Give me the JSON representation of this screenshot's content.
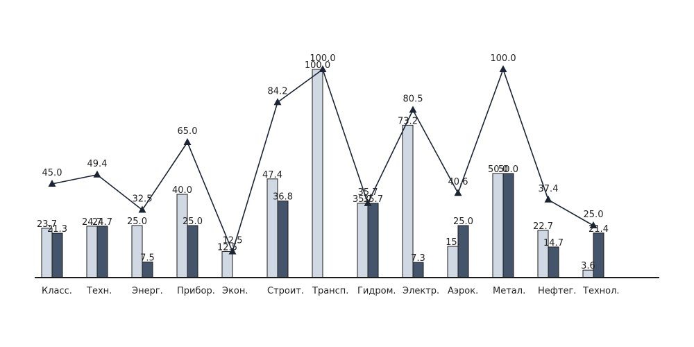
{
  "chart_data": {
    "type": "bar",
    "categories": [
      "Класс.",
      "Техн.",
      "Энерг.",
      "Прибор.",
      "Экон.",
      "Строит.",
      "Трансп.",
      "Гидром.",
      "Электр.",
      "Аэрок.",
      "Метал.",
      "Нефтег.",
      "Технол."
    ],
    "series": [
      {
        "type": "bar",
        "color": "#cfd8e3",
        "values": [
          23.7,
          24.7,
          25.0,
          40.0,
          12.5,
          47.4,
          100.0,
          35.7,
          73.2,
          15.0,
          50.0,
          22.7,
          3.6
        ],
        "labels": [
          "23.7",
          "24.7",
          "25.0",
          "40.0",
          "12.5",
          "47.4",
          "100.0",
          "35.7",
          "73.2",
          "15.",
          "50.0",
          "22.7",
          "3.6"
        ]
      },
      {
        "type": "bar",
        "color": "#44546a",
        "values": [
          21.3,
          24.7,
          7.5,
          25.0,
          null,
          36.8,
          null,
          35.7,
          7.3,
          25.0,
          50.0,
          14.7,
          21.4
        ],
        "labels": [
          "21.3",
          "24.7",
          "7.5",
          "25.0",
          "",
          "36.8",
          "",
          "35.7",
          "7.3",
          "25.0",
          "50.0",
          "14.7",
          "21.4"
        ]
      },
      {
        "type": "line",
        "color": "#1b2433",
        "marker": "triangle",
        "values": [
          45.0,
          49.4,
          32.5,
          65.0,
          12.5,
          84.2,
          100.0,
          35.7,
          80.5,
          40.6,
          100.0,
          37.4,
          25.0
        ],
        "labels": [
          "45.0",
          "49.4",
          "32.5",
          "65.0",
          "12.5",
          "84.2",
          "100.0",
          "35.7",
          "80.5",
          "40.6",
          "100.0",
          "37.4",
          "25.0"
        ]
      }
    ],
    "ylim": [
      0,
      100
    ],
    "grid": false,
    "legend": "none",
    "axis_color": "#1a1a1a"
  }
}
